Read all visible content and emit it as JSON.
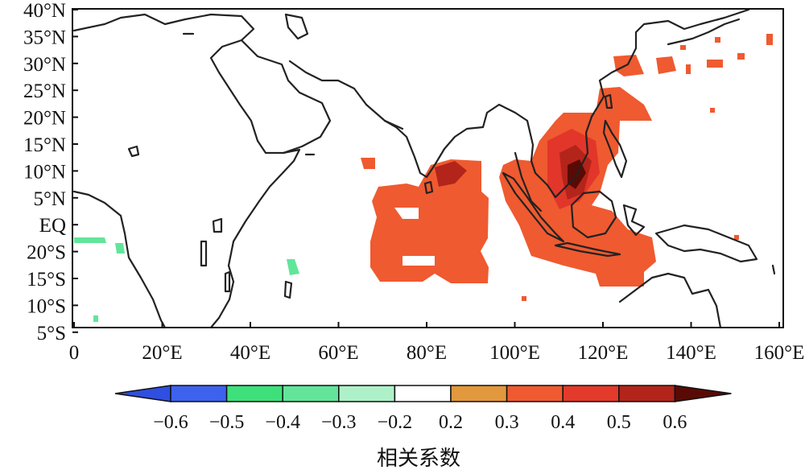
{
  "map": {
    "lat_labels": [
      "40°N",
      "35°N",
      "30°N",
      "25°N",
      "20°N",
      "15°N",
      "10°N",
      "5°N",
      "EQ",
      "20°S",
      "15°S",
      "10°S",
      "5°S"
    ],
    "lon_labels": [
      "0",
      "20°E",
      "40°E",
      "60°E",
      "80°E",
      "100°E",
      "120°E",
      "140°E",
      "160°E"
    ],
    "shading_colors": {
      "lt_-0.6": "#1f3fd6",
      "-0.6_-0.5": "#2b56e8",
      "-0.5_-0.4": "#3de07a",
      "-0.4_-0.3": "#5fe08f",
      "-0.3_-0.2": "#a8f0c2",
      "-0.2_0.2": "#ffffff",
      "0.2_0.3": "#e0963a",
      "0.3_0.4": "#f0522a",
      "0.4_0.5": "#e2362a",
      "0.5_0.6": "#b31f17",
      "gt_0.6": "#5a0a05"
    }
  },
  "colorbar": {
    "tick_labels": [
      "−0.6",
      "−0.5",
      "−0.4",
      "−0.3",
      "−0.2",
      "0.2",
      "0.3",
      "0.4",
      "0.5",
      "0.6"
    ],
    "title": "相关系数",
    "colors": [
      "#2f4fe0",
      "#3d62ee",
      "#3ee07c",
      "#62e59a",
      "#aef1c8",
      "#ffffff",
      "#e2983c",
      "#ef5a30",
      "#e33a2b",
      "#b3241a",
      "#5a0a05"
    ]
  }
}
